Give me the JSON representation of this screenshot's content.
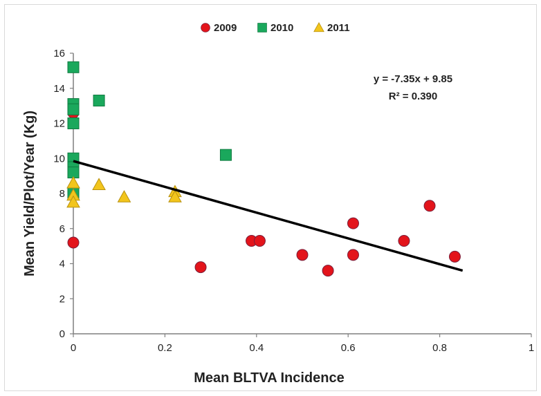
{
  "chart_data": {
    "type": "scatter",
    "xlabel": "Mean BLTVA Incidence",
    "ylabel": "Mean Yield/Plot/Year (Kg)",
    "xlim": [
      0,
      1
    ],
    "ylim": [
      0,
      16
    ],
    "x_ticks": [
      0,
      0.2,
      0.4,
      0.6,
      0.8,
      1
    ],
    "x_tick_labels": [
      "0",
      "0.2",
      "0.4",
      "0.6",
      "0.8",
      "1"
    ],
    "y_ticks": [
      0,
      2,
      4,
      6,
      8,
      10,
      12,
      14,
      16
    ],
    "y_tick_labels": [
      "0",
      "2",
      "4",
      "6",
      "8",
      "10",
      "12",
      "14",
      "16"
    ],
    "grid": false,
    "legend_position": "top",
    "series": [
      {
        "name": "2009",
        "marker": "circle",
        "color": "#e3141b",
        "points": [
          [
            0,
            5.2
          ],
          [
            0,
            12.6
          ],
          [
            0.278,
            3.8
          ],
          [
            0.389,
            5.3
          ],
          [
            0.407,
            5.3
          ],
          [
            0.5,
            4.5
          ],
          [
            0.556,
            3.6
          ],
          [
            0.611,
            6.3
          ],
          [
            0.611,
            4.5
          ],
          [
            0.722,
            5.3
          ],
          [
            0.778,
            7.3
          ],
          [
            0.833,
            4.4
          ]
        ]
      },
      {
        "name": "2010",
        "marker": "square",
        "color": "#1aa85c",
        "points": [
          [
            0,
            15.2
          ],
          [
            0,
            13.1
          ],
          [
            0,
            12.8
          ],
          [
            0,
            12.0
          ],
          [
            0,
            10.0
          ],
          [
            0,
            9.5
          ],
          [
            0,
            9.2
          ],
          [
            0,
            8.0
          ],
          [
            0.056,
            13.3
          ],
          [
            0.333,
            10.2
          ]
        ]
      },
      {
        "name": "2011",
        "marker": "triangle",
        "color": "#f2c51c",
        "points": [
          [
            0,
            8.6
          ],
          [
            0,
            7.9
          ],
          [
            0,
            7.5
          ],
          [
            0.056,
            8.5
          ],
          [
            0.111,
            7.8
          ],
          [
            0.222,
            8.1
          ],
          [
            0.222,
            7.8
          ]
        ]
      }
    ],
    "trendline": {
      "slope": -7.35,
      "intercept": 9.85,
      "x_range": [
        0,
        0.85
      ],
      "equation_label": "y = -7.35x + 9.85",
      "r2_label": "R² = 0.390",
      "color": "#000000"
    }
  }
}
